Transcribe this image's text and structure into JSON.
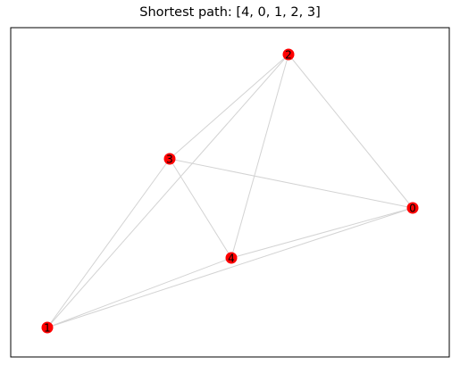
{
  "title": "Shortest path: [4, 0, 1, 2, 3]",
  "colors": {
    "node": "#ff0000",
    "edge": "#d3d3d3",
    "frame": "#000000",
    "label": "#000000"
  },
  "graph": {
    "nodes": [
      {
        "id": "0",
        "label": "0"
      },
      {
        "id": "1",
        "label": "1"
      },
      {
        "id": "2",
        "label": "2"
      },
      {
        "id": "3",
        "label": "3"
      },
      {
        "id": "4",
        "label": "4"
      }
    ],
    "edges": [
      [
        "0",
        "1"
      ],
      [
        "0",
        "2"
      ],
      [
        "0",
        "3"
      ],
      [
        "0",
        "4"
      ],
      [
        "1",
        "2"
      ],
      [
        "1",
        "3"
      ],
      [
        "1",
        "4"
      ],
      [
        "2",
        "3"
      ],
      [
        "2",
        "4"
      ],
      [
        "3",
        "4"
      ]
    ]
  }
}
